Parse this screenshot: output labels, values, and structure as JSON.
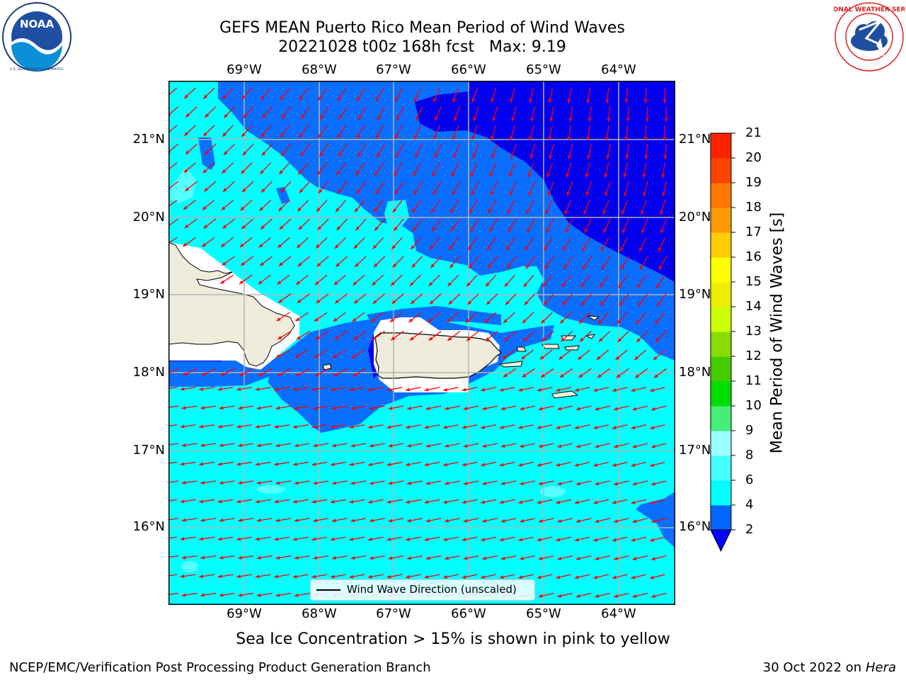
{
  "title": {
    "line1": "GEFS MEAN Puerto Rico Mean Period of Wind Waves",
    "line2": "20221028 t00z 168h fcst   Max: 9.19"
  },
  "logos": {
    "left": "noaa-logo",
    "right": "national-weather-service-logo",
    "right_ring_text": "NATIONAL WEATHER SERVICE",
    "left_ring_text": "NATIONAL OCEANIC AND ATMOSPHERIC ADMINISTRATION · U.S. DEPARTMENT OF COMMERCE",
    "left_center_text": "NOAA"
  },
  "map": {
    "lon_labels": [
      "69°W",
      "68°W",
      "67°W",
      "66°W",
      "65°W",
      "64°W"
    ],
    "lat_labels": [
      "21°N",
      "20°N",
      "19°N",
      "18°N",
      "17°N",
      "16°N"
    ],
    "lon_range": [
      -70.0,
      -63.25
    ],
    "lat_range": [
      15.0,
      21.75
    ],
    "legend_label": "Wind Wave Direction (unscaled)",
    "arrow_color": "#ff0000",
    "land_color": "#efecdc"
  },
  "colorbar": {
    "label": "Mean Period of Wind Waves [s]",
    "ticks": [
      "2",
      "4",
      "6",
      "8",
      "9",
      "10",
      "11",
      "12",
      "13",
      "14",
      "15",
      "16",
      "17",
      "18",
      "19",
      "20",
      "21"
    ],
    "colors": [
      "#0066ff",
      "#00ffff",
      "#44ffff",
      "#99ffff",
      "#44ee77",
      "#00dd00",
      "#44cc00",
      "#88dd00",
      "#ccff00",
      "#eeee00",
      "#ffff00",
      "#ffcc00",
      "#ff9900",
      "#ff7700",
      "#ff4400",
      "#ff2200",
      "#ff0000"
    ],
    "under_color": "#0000ff"
  },
  "footnote": "Sea Ice Concentration > 15% is shown in pink to yellow",
  "credit_left": "NCEP/EMC/Verification Post Processing Product Generation Branch",
  "credit_right_prefix": "30 Oct 2022 on ",
  "credit_right_machine": "Hera"
}
